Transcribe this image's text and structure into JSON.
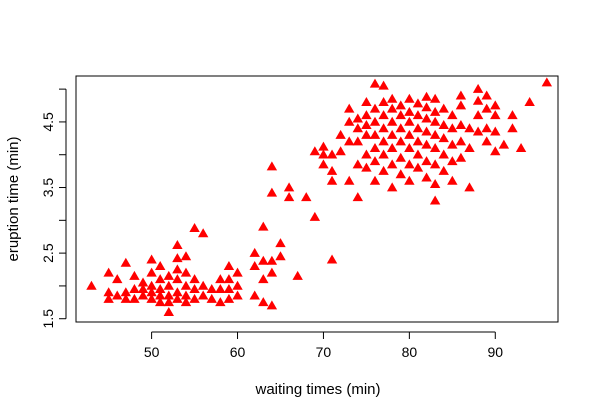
{
  "chart_data": {
    "type": "scatter",
    "title": "",
    "xlabel": "waiting times (min)",
    "ylabel": "eruption time (min)",
    "xlim": [
      41.2,
      97.3
    ],
    "ylim": [
      1.45,
      5.2
    ],
    "xticks": [
      50,
      60,
      70,
      80,
      90
    ],
    "xtick_labels": [
      "50",
      "60",
      "70",
      "80",
      "90"
    ],
    "yticks": [
      1.5,
      2.0,
      2.5,
      3.0,
      3.5,
      4.0,
      4.5,
      5.0
    ],
    "ytick_labels": [
      "1.5",
      "",
      "2.5",
      "",
      "3.5",
      "",
      "4.5",
      ""
    ],
    "marker": "filled-triangle",
    "marker_color": "#ff0000",
    "grid": false,
    "series": [
      {
        "points": [
          [
            43,
            2.0
          ],
          [
            45,
            1.8
          ],
          [
            45,
            1.9
          ],
          [
            45,
            2.2
          ],
          [
            46,
            1.85
          ],
          [
            46,
            2.1
          ],
          [
            47,
            1.8
          ],
          [
            47,
            1.9
          ],
          [
            47,
            2.35
          ],
          [
            48,
            1.8
          ],
          [
            48,
            1.95
          ],
          [
            48,
            2.15
          ],
          [
            49,
            1.85
          ],
          [
            49,
            1.95
          ],
          [
            49,
            2.05
          ],
          [
            50,
            1.8
          ],
          [
            50,
            1.9
          ],
          [
            50,
            2.0
          ],
          [
            50,
            2.2
          ],
          [
            50,
            2.4
          ],
          [
            51,
            1.75
          ],
          [
            51,
            1.85
          ],
          [
            51,
            1.95
          ],
          [
            51,
            2.1
          ],
          [
            51,
            2.3
          ],
          [
            52,
            1.6
          ],
          [
            52,
            1.75
          ],
          [
            52,
            1.85
          ],
          [
            52,
            2.0
          ],
          [
            52,
            2.15
          ],
          [
            53,
            1.8
          ],
          [
            53,
            1.9
          ],
          [
            53,
            2.1
          ],
          [
            53,
            2.25
          ],
          [
            53,
            2.42
          ],
          [
            53,
            2.62
          ],
          [
            54,
            1.75
          ],
          [
            54,
            1.85
          ],
          [
            54,
            2.0
          ],
          [
            54,
            2.2
          ],
          [
            54,
            2.45
          ],
          [
            55,
            1.8
          ],
          [
            55,
            1.95
          ],
          [
            55,
            2.1
          ],
          [
            55,
            2.88
          ],
          [
            56,
            1.85
          ],
          [
            56,
            2.0
          ],
          [
            56,
            2.8
          ],
          [
            57,
            1.8
          ],
          [
            57,
            1.95
          ],
          [
            58,
            1.75
          ],
          [
            58,
            1.95
          ],
          [
            58,
            2.1
          ],
          [
            59,
            1.8
          ],
          [
            59,
            1.95
          ],
          [
            59,
            2.1
          ],
          [
            59,
            2.3
          ],
          [
            60,
            1.85
          ],
          [
            60,
            2.0
          ],
          [
            60,
            2.2
          ],
          [
            62,
            1.85
          ],
          [
            62,
            2.3
          ],
          [
            62,
            2.5
          ],
          [
            63,
            1.75
          ],
          [
            63,
            2.1
          ],
          [
            63,
            2.38
          ],
          [
            63,
            2.9
          ],
          [
            64,
            1.7
          ],
          [
            64,
            2.2
          ],
          [
            64,
            2.38
          ],
          [
            64,
            3.42
          ],
          [
            64,
            3.82
          ],
          [
            65,
            2.45
          ],
          [
            65,
            2.65
          ],
          [
            66,
            3.35
          ],
          [
            66,
            3.5
          ],
          [
            67,
            2.15
          ],
          [
            68,
            3.35
          ],
          [
            69,
            3.05
          ],
          [
            69,
            4.05
          ],
          [
            70,
            3.85
          ],
          [
            70,
            4.0
          ],
          [
            70,
            4.12
          ],
          [
            71,
            2.4
          ],
          [
            71,
            3.6
          ],
          [
            71,
            3.75
          ],
          [
            71,
            4.0
          ],
          [
            72,
            4.05
          ],
          [
            72,
            4.3
          ],
          [
            73,
            3.6
          ],
          [
            73,
            4.2
          ],
          [
            73,
            4.5
          ],
          [
            73,
            4.7
          ],
          [
            74,
            3.35
          ],
          [
            74,
            3.85
          ],
          [
            74,
            4.2
          ],
          [
            74,
            4.4
          ],
          [
            74,
            4.55
          ],
          [
            75,
            3.8
          ],
          [
            75,
            4.0
          ],
          [
            75,
            4.3
          ],
          [
            75,
            4.45
          ],
          [
            75,
            4.6
          ],
          [
            75,
            4.8
          ],
          [
            76,
            3.6
          ],
          [
            76,
            3.9
          ],
          [
            76,
            4.1
          ],
          [
            76,
            4.3
          ],
          [
            76,
            4.5
          ],
          [
            76,
            4.7
          ],
          [
            76,
            5.08
          ],
          [
            77,
            3.75
          ],
          [
            77,
            4.0
          ],
          [
            77,
            4.2
          ],
          [
            77,
            4.4
          ],
          [
            77,
            4.6
          ],
          [
            77,
            4.8
          ],
          [
            77,
            5.05
          ],
          [
            78,
            3.5
          ],
          [
            78,
            3.85
          ],
          [
            78,
            4.1
          ],
          [
            78,
            4.3
          ],
          [
            78,
            4.5
          ],
          [
            78,
            4.7
          ],
          [
            78,
            4.85
          ],
          [
            79,
            3.7
          ],
          [
            79,
            3.95
          ],
          [
            79,
            4.2
          ],
          [
            79,
            4.4
          ],
          [
            79,
            4.6
          ],
          [
            79,
            4.75
          ],
          [
            80,
            3.6
          ],
          [
            80,
            3.85
          ],
          [
            80,
            4.1
          ],
          [
            80,
            4.3
          ],
          [
            80,
            4.5
          ],
          [
            80,
            4.65
          ],
          [
            80,
            4.85
          ],
          [
            81,
            3.8
          ],
          [
            81,
            4.0
          ],
          [
            81,
            4.2
          ],
          [
            81,
            4.4
          ],
          [
            81,
            4.6
          ],
          [
            81,
            4.78
          ],
          [
            82,
            3.65
          ],
          [
            82,
            3.9
          ],
          [
            82,
            4.15
          ],
          [
            82,
            4.35
          ],
          [
            82,
            4.55
          ],
          [
            82,
            4.72
          ],
          [
            82,
            4.88
          ],
          [
            83,
            3.3
          ],
          [
            83,
            3.55
          ],
          [
            83,
            3.85
          ],
          [
            83,
            4.1
          ],
          [
            83,
            4.3
          ],
          [
            83,
            4.5
          ],
          [
            83,
            4.65
          ],
          [
            83,
            4.85
          ],
          [
            84,
            3.75
          ],
          [
            84,
            4.0
          ],
          [
            84,
            4.25
          ],
          [
            84,
            4.45
          ],
          [
            84,
            4.7
          ],
          [
            85,
            3.6
          ],
          [
            85,
            3.9
          ],
          [
            85,
            4.15
          ],
          [
            85,
            4.4
          ],
          [
            85,
            4.6
          ],
          [
            86,
            3.95
          ],
          [
            86,
            4.2
          ],
          [
            86,
            4.45
          ],
          [
            86,
            4.75
          ],
          [
            86,
            4.9
          ],
          [
            87,
            3.5
          ],
          [
            87,
            4.1
          ],
          [
            87,
            4.4
          ],
          [
            88,
            4.35
          ],
          [
            88,
            4.6
          ],
          [
            88,
            4.82
          ],
          [
            88,
            5.0
          ],
          [
            89,
            4.2
          ],
          [
            89,
            4.4
          ],
          [
            89,
            4.7
          ],
          [
            89,
            4.9
          ],
          [
            90,
            4.05
          ],
          [
            90,
            4.35
          ],
          [
            90,
            4.6
          ],
          [
            90,
            4.75
          ],
          [
            91,
            4.15
          ],
          [
            92,
            4.4
          ],
          [
            92,
            4.6
          ],
          [
            93,
            4.1
          ],
          [
            94,
            4.8
          ],
          [
            96,
            5.1
          ]
        ]
      }
    ]
  }
}
